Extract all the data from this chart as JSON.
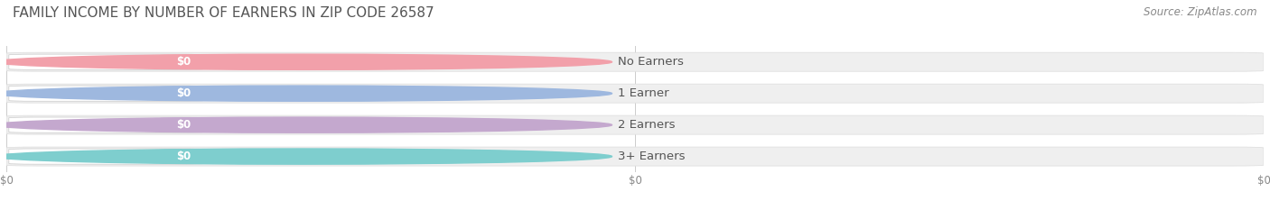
{
  "title": "FAMILY INCOME BY NUMBER OF EARNERS IN ZIP CODE 26587",
  "source": "Source: ZipAtlas.com",
  "categories": [
    "No Earners",
    "1 Earner",
    "2 Earners",
    "3+ Earners"
  ],
  "values": [
    0,
    0,
    0,
    0
  ],
  "bar_colors": [
    "#f2a0aa",
    "#9eb8df",
    "#c4a8ce",
    "#7ecece"
  ],
  "bg_color": "#ffffff",
  "bar_bg_color": "#efefef",
  "bar_bg_edge_color": "#e0e0e0",
  "title_fontsize": 11,
  "label_fontsize": 9.5,
  "value_fontsize": 8.5,
  "source_fontsize": 8.5,
  "tick_fontsize": 8.5
}
